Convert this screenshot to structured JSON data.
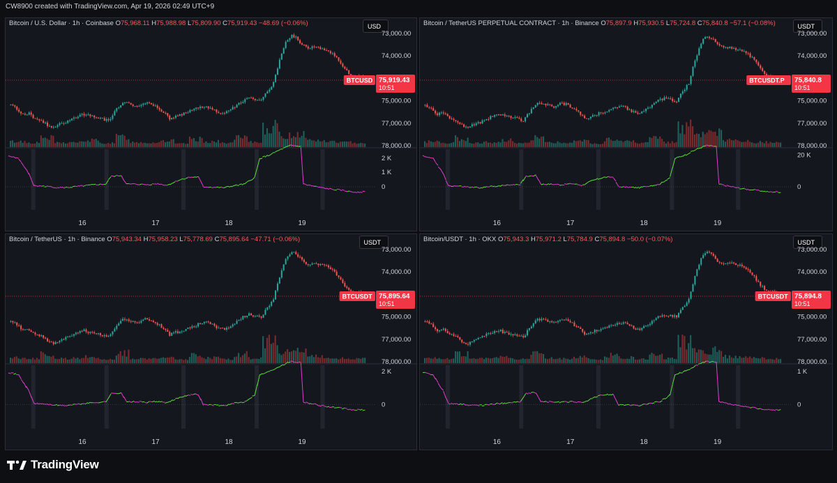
{
  "header": {
    "text": "CW8900 created with TradingView.com, Apr 19, 2026 02:49 UTC+9"
  },
  "footer": {
    "brand": "TradingView"
  },
  "colors": {
    "up": "#26a69a",
    "down": "#ef5350",
    "cvd_up": "#5ce03c",
    "cvd_down": "#e33ccf",
    "label_bg": "#f23645"
  },
  "panels": [
    {
      "id": "p1",
      "title_sym": "Bitcoin / U.S. Dollar · 1h · Coinbase",
      "O": "75,968.11",
      "H": "75,988.98",
      "L": "75,809.90",
      "C": "75,919.43",
      "chg": "−48.69 (−0.06%)",
      "currency": "USD",
      "ticker": "BTCUSD",
      "price_label": "75,919.43",
      "countdown": "10:51",
      "price_ticks": [
        "78,000.00",
        "77,000.00",
        "75,000.00",
        "74,000.00",
        "73,000.00"
      ],
      "cvd_ticks": [
        "2 K",
        "1 K",
        "0"
      ],
      "date_ticks": [
        "16",
        "17",
        "18",
        "19"
      ]
    },
    {
      "id": "p2",
      "title_sym": "Bitcoin / TetherUS PERPETUAL CONTRACT · 1h · Binance",
      "O": "75,897.9",
      "H": "75,930.5",
      "L": "75,724.8",
      "C": "75,840.8",
      "chg": "−57.1 (−0.08%)",
      "currency": "USDT",
      "ticker": "BTCUSDT.P",
      "price_label": "75,840.8",
      "countdown": "10:51",
      "price_ticks": [
        "78,000.00",
        "77,000.00",
        "75,000.00",
        "74,000.00",
        "73,000.00"
      ],
      "cvd_ticks": [
        "20 K",
        "0"
      ],
      "date_ticks": [
        "16",
        "17",
        "18",
        "19"
      ]
    },
    {
      "id": "p3",
      "title_sym": "Bitcoin / TetherUS · 1h · Binance",
      "O": "75,943.34",
      "H": "75,958.23",
      "L": "75,778.69",
      "C": "75,895.64",
      "chg": "−47.71 (−0.06%)",
      "currency": "USDT",
      "ticker": "BTCUSDT",
      "price_label": "75,895.64",
      "countdown": "10:51",
      "price_ticks": [
        "78,000.00",
        "77,000.00",
        "75,000.00",
        "74,000.00",
        "73,000.00"
      ],
      "cvd_ticks": [
        "2 K",
        "0"
      ],
      "date_ticks": [
        "16",
        "17",
        "18",
        "19"
      ]
    },
    {
      "id": "p4",
      "title_sym": "Bitcoin/USDT · 1h · OKX",
      "O": "75,943.3",
      "H": "75,971.2",
      "L": "75,784.9",
      "C": "75,894.8",
      "chg": "−50.0 (−0.07%)",
      "currency": "USDT",
      "ticker": "BTCUSDT",
      "price_label": "75,894.8",
      "countdown": "10:51",
      "price_ticks": [
        "78,000.00",
        "77,000.00",
        "75,000.00",
        "74,000.00",
        "73,000.00"
      ],
      "cvd_ticks": [
        "1 K",
        "0"
      ],
      "date_ticks": [
        "16",
        "17",
        "18",
        "19"
      ]
    }
  ],
  "chart_data": {
    "type": "candlestick",
    "interval": "1h",
    "price_axis": {
      "min": 73000,
      "max": 78000,
      "ticks": [
        73000,
        74000,
        75000,
        77000,
        78000
      ]
    },
    "x_axis_dates": [
      "16",
      "17",
      "18",
      "19"
    ],
    "price_path": [
      [
        0,
        74800
      ],
      [
        3,
        74650
      ],
      [
        6,
        74400
      ],
      [
        9,
        74450
      ],
      [
        12,
        74200
      ],
      [
        15,
        74150
      ],
      [
        18,
        73900
      ],
      [
        21,
        73800
      ],
      [
        24,
        73950
      ],
      [
        27,
        74050
      ],
      [
        30,
        74200
      ],
      [
        33,
        74300
      ],
      [
        36,
        74400
      ],
      [
        39,
        74300
      ],
      [
        42,
        74250
      ],
      [
        45,
        74200
      ],
      [
        48,
        74100
      ],
      [
        51,
        74500
      ],
      [
        54,
        74850
      ],
      [
        57,
        74900
      ],
      [
        60,
        74800
      ],
      [
        63,
        74750
      ],
      [
        66,
        74900
      ],
      [
        69,
        74850
      ],
      [
        72,
        74700
      ],
      [
        75,
        74500
      ],
      [
        78,
        74200
      ],
      [
        81,
        74300
      ],
      [
        84,
        74400
      ],
      [
        87,
        74500
      ],
      [
        90,
        74600
      ],
      [
        93,
        74700
      ],
      [
        96,
        74750
      ],
      [
        99,
        74650
      ],
      [
        102,
        74500
      ],
      [
        105,
        74450
      ],
      [
        108,
        74600
      ],
      [
        111,
        74800
      ],
      [
        114,
        75000
      ],
      [
        117,
        75100
      ],
      [
        120,
        75050
      ],
      [
        123,
        75000
      ],
      [
        126,
        75400
      ],
      [
        129,
        75800
      ],
      [
        132,
        76800
      ],
      [
        135,
        77600
      ],
      [
        138,
        77900
      ],
      [
        140,
        77800
      ],
      [
        143,
        77500
      ],
      [
        146,
        77350
      ],
      [
        149,
        77400
      ],
      [
        152,
        77300
      ],
      [
        155,
        77250
      ],
      [
        158,
        77100
      ],
      [
        161,
        76800
      ],
      [
        164,
        76400
      ],
      [
        167,
        76150
      ],
      [
        170,
        76100
      ],
      [
        173,
        76050
      ],
      [
        175,
        75920
      ]
    ],
    "cvd_path": [
      [
        0,
        0.6
      ],
      [
        4,
        0.55
      ],
      [
        8,
        0.25
      ],
      [
        10,
        0.02
      ],
      [
        14,
        0.01
      ],
      [
        18,
        -0.01
      ],
      [
        22,
        -0.02
      ],
      [
        26,
        0.0
      ],
      [
        30,
        0.02
      ],
      [
        34,
        0.04
      ],
      [
        38,
        0.05
      ],
      [
        40,
        0.2
      ],
      [
        44,
        0.22
      ],
      [
        46,
        0.05
      ],
      [
        50,
        0.05
      ],
      [
        54,
        0.04
      ],
      [
        58,
        0.06
      ],
      [
        62,
        0.03
      ],
      [
        66,
        0.12
      ],
      [
        70,
        0.18
      ],
      [
        74,
        0.19
      ],
      [
        76,
        0.0
      ],
      [
        80,
        -0.01
      ],
      [
        84,
        -0.02
      ],
      [
        88,
        0.02
      ],
      [
        92,
        0.05
      ],
      [
        96,
        0.18
      ],
      [
        98,
        0.55
      ],
      [
        102,
        0.62
      ],
      [
        106,
        0.72
      ],
      [
        110,
        0.8
      ],
      [
        114,
        0.78
      ],
      [
        115,
        0.05
      ],
      [
        118,
        0.02
      ],
      [
        122,
        -0.02
      ],
      [
        126,
        -0.05
      ],
      [
        130,
        -0.07
      ],
      [
        134,
        -0.1
      ]
    ],
    "volume_profile": [
      0.15,
      0.1,
      0.3,
      0.1,
      0.12,
      0.2,
      0.08,
      0.35,
      0.12,
      0.1,
      0.18,
      0.06,
      0.25,
      0.15,
      0.09,
      0.3,
      0.12,
      0.8,
      0.4,
      0.5,
      0.2,
      0.15,
      0.12,
      0.1
    ]
  }
}
